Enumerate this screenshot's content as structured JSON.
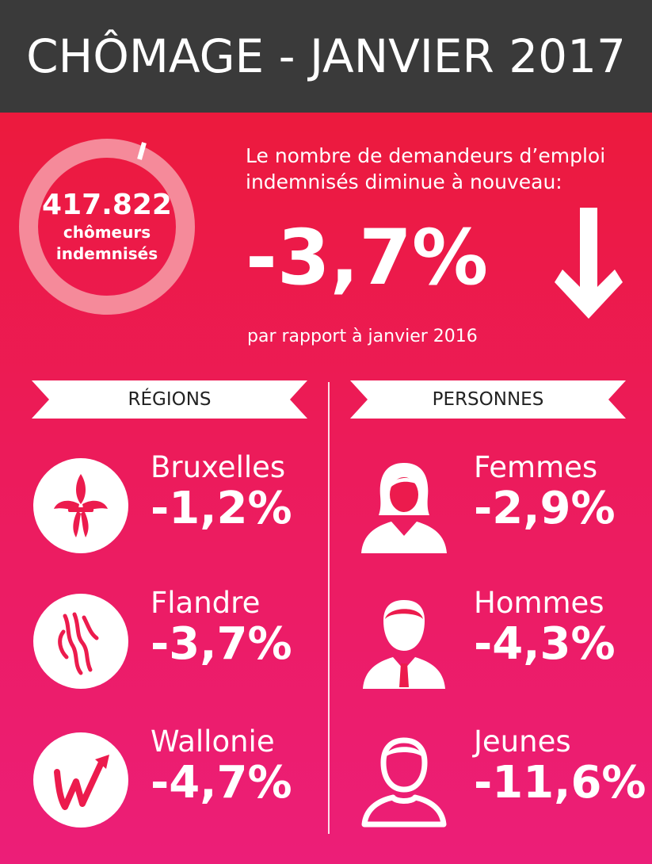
{
  "header": {
    "title": "CHÔMAGE - JANVIER 2017"
  },
  "summary": {
    "count": "417.822",
    "count_label_line1": "chômeurs",
    "count_label_line2": "indemnisés",
    "headline_line1": "Le nombre de demandeurs d’emploi",
    "headline_line2": "indemnisés diminue à nouveau:",
    "change": "-3,7%",
    "comparison": "par rapport à janvier 2016"
  },
  "colors": {
    "header_bg": "#3a3a3a",
    "gradient_top": "#ec1a3d",
    "gradient_bottom": "#ec1e78",
    "donut_track": "#f58a9a",
    "white": "#ffffff"
  },
  "regions": {
    "heading": "RÉGIONS",
    "items": [
      {
        "name": "Bruxelles",
        "change": "-1,2%",
        "icon": "iris-flower-icon"
      },
      {
        "name": "Flandre",
        "change": "-3,7%",
        "icon": "lion-icon"
      },
      {
        "name": "Wallonie",
        "change": "-4,7%",
        "icon": "wallonie-logo-icon"
      }
    ]
  },
  "persons": {
    "heading": "PERSONNES",
    "items": [
      {
        "name": "Femmes",
        "change": "-2,9%",
        "icon": "woman-icon"
      },
      {
        "name": "Hommes",
        "change": "-4,3%",
        "icon": "man-icon"
      },
      {
        "name": "Jeunes",
        "change": "-11,6%",
        "icon": "young-person-icon"
      }
    ]
  }
}
